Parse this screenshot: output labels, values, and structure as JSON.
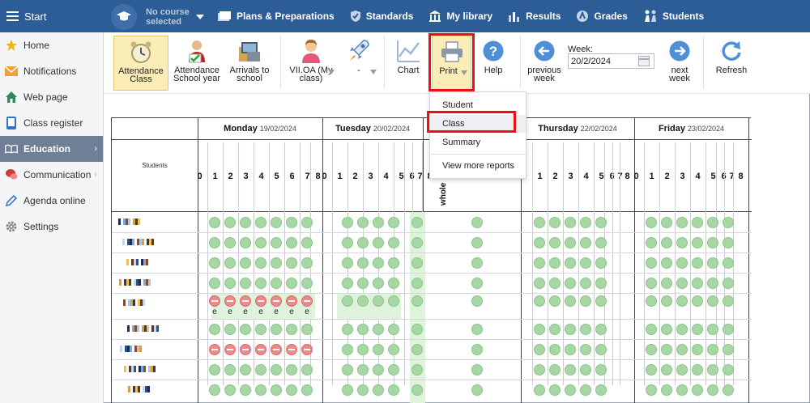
{
  "topbar": {
    "start": "Start",
    "course": "No course selected",
    "course_line1": "No course",
    "course_line2": "selected",
    "nav": [
      {
        "label": "Plans & Preparations",
        "icon": "folders-icon"
      },
      {
        "label": "Standards",
        "icon": "shield-check-icon"
      },
      {
        "label": "My library",
        "icon": "library-icon"
      },
      {
        "label": "Results",
        "icon": "bar-chart-icon"
      },
      {
        "label": "Grades",
        "icon": "grades-icon"
      },
      {
        "label": "Students",
        "icon": "students-icon"
      }
    ]
  },
  "sidebar": {
    "items": [
      {
        "label": "Home",
        "icon": "star-icon"
      },
      {
        "label": "Notifications",
        "icon": "envelope-icon"
      },
      {
        "label": "Web page",
        "icon": "house-icon"
      },
      {
        "label": "Class register",
        "icon": "tablet-icon"
      },
      {
        "label": "Education",
        "icon": "open-book-icon"
      },
      {
        "label": "Communication",
        "icon": "chat-icon"
      },
      {
        "label": "Agenda online",
        "icon": "pencil-icon"
      },
      {
        "label": "Settings",
        "icon": "gear-icon"
      }
    ],
    "active": "Education"
  },
  "toolbar": {
    "attendance_class": "Attendance Class",
    "attendance_year_1": "Attendance",
    "attendance_year_2": "School year",
    "arrivals_1": "Arrivals to",
    "arrivals_2": "school",
    "class_name_1": "VII.OA (My",
    "class_name_2": "class)",
    "rocket_label": "-",
    "chart": "Chart",
    "print": "Print",
    "help": "Help",
    "prev_1": "previous",
    "prev_2": "week",
    "week_label": "Week:",
    "week_value": "20/2/2024",
    "next_1": "next",
    "next_2": "week",
    "refresh": "Refresh"
  },
  "print_menu": {
    "items": [
      "Student",
      "Class",
      "Summary",
      "View more reports"
    ],
    "highlighted": "Class"
  },
  "grid": {
    "students_label": "Students",
    "days": [
      {
        "name": "Monday",
        "date": "19/02/2024"
      },
      {
        "name": "Tuesday",
        "date": "20/02/2024"
      },
      {
        "name": "Thursday",
        "date": "22/02/2024"
      },
      {
        "name": "Friday",
        "date": "23/02/2024"
      }
    ],
    "periods": [
      "0",
      "1",
      "2",
      "3",
      "4",
      "5",
      "6",
      "7",
      "8"
    ],
    "whole_day": "whole",
    "absence_mark": "e",
    "colors": {
      "present": "#a6d7a4",
      "absent": "#ec8a8a",
      "highlight": "#dff2dc"
    }
  }
}
